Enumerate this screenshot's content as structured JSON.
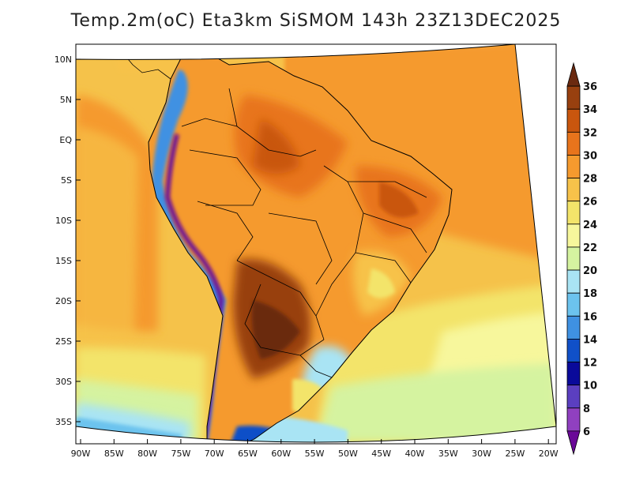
{
  "title": "Temp.2m(oC) Eta3km SiSMOM 143h 23Z13DEC2025",
  "map": {
    "variable": "Temp.2m(oC)",
    "model": "Eta3km SiSMOM",
    "forecast_hour": "143h",
    "valid_time": "23Z13DEC2025",
    "lat_ticks": [
      "10N",
      "5N",
      "EQ",
      "5S",
      "10S",
      "15S",
      "20S",
      "25S",
      "30S",
      "35S"
    ],
    "lon_ticks": [
      "90W",
      "85W",
      "80W",
      "75W",
      "70W",
      "65W",
      "60W",
      "55W",
      "50W",
      "45W",
      "40W",
      "35W",
      "30W",
      "25W",
      "20W"
    ]
  },
  "colorbar": {
    "labels": [
      "36",
      "34",
      "32",
      "30",
      "28",
      "26",
      "24",
      "22",
      "20",
      "18",
      "16",
      "14",
      "12",
      "10",
      "8",
      "6"
    ],
    "colors": [
      "#6b2a10",
      "#98400f",
      "#c9560e",
      "#e8741c",
      "#f59a2e",
      "#f7c24a",
      "#f3e46a",
      "#f7f79c",
      "#d5f3a0",
      "#a9e4f4",
      "#6cc3ee",
      "#3f91e2",
      "#1050c8",
      "#0a0a9a",
      "#5b3fc0",
      "#9040c0",
      "#6a0898"
    ]
  }
}
